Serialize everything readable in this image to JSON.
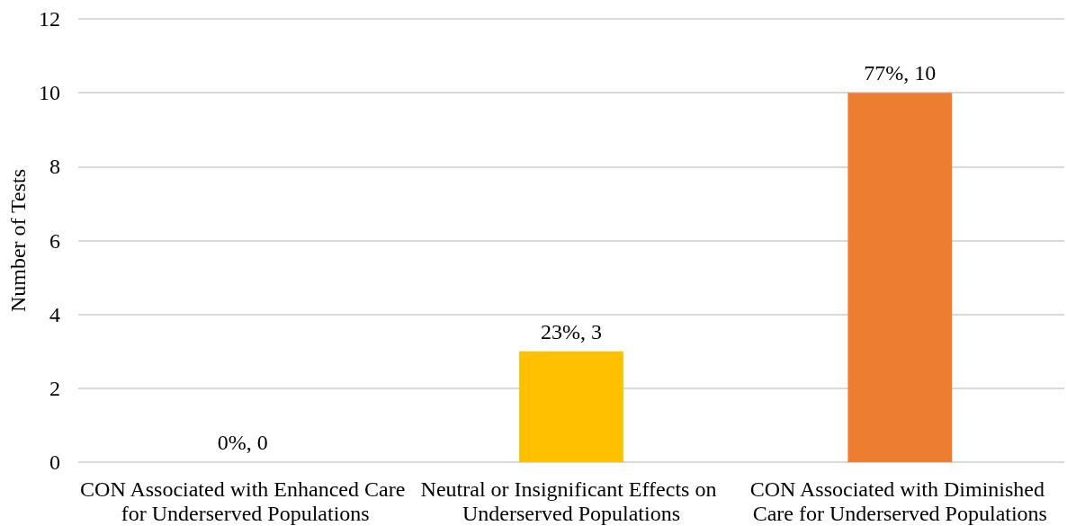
{
  "chart_data": {
    "type": "bar",
    "ylabel": "Number of Tests",
    "categories": [
      "CON Associated with Enhanced Care for Underserved Populations",
      "Neutral or Insignificant Effects on Underserved Populations",
      "CON Associated with Diminished Care for Underserved Populations"
    ],
    "values": [
      0,
      3,
      10
    ],
    "colors": [
      "#4472c4",
      "#ffc000",
      "#ed7d31"
    ],
    "value_labels": [
      "0%, 0",
      "23%, 3",
      "77%, 10"
    ],
    "ylim": [
      0,
      12
    ],
    "yticks": [
      0,
      2,
      4,
      6,
      8,
      10,
      12
    ],
    "grid": "y"
  }
}
